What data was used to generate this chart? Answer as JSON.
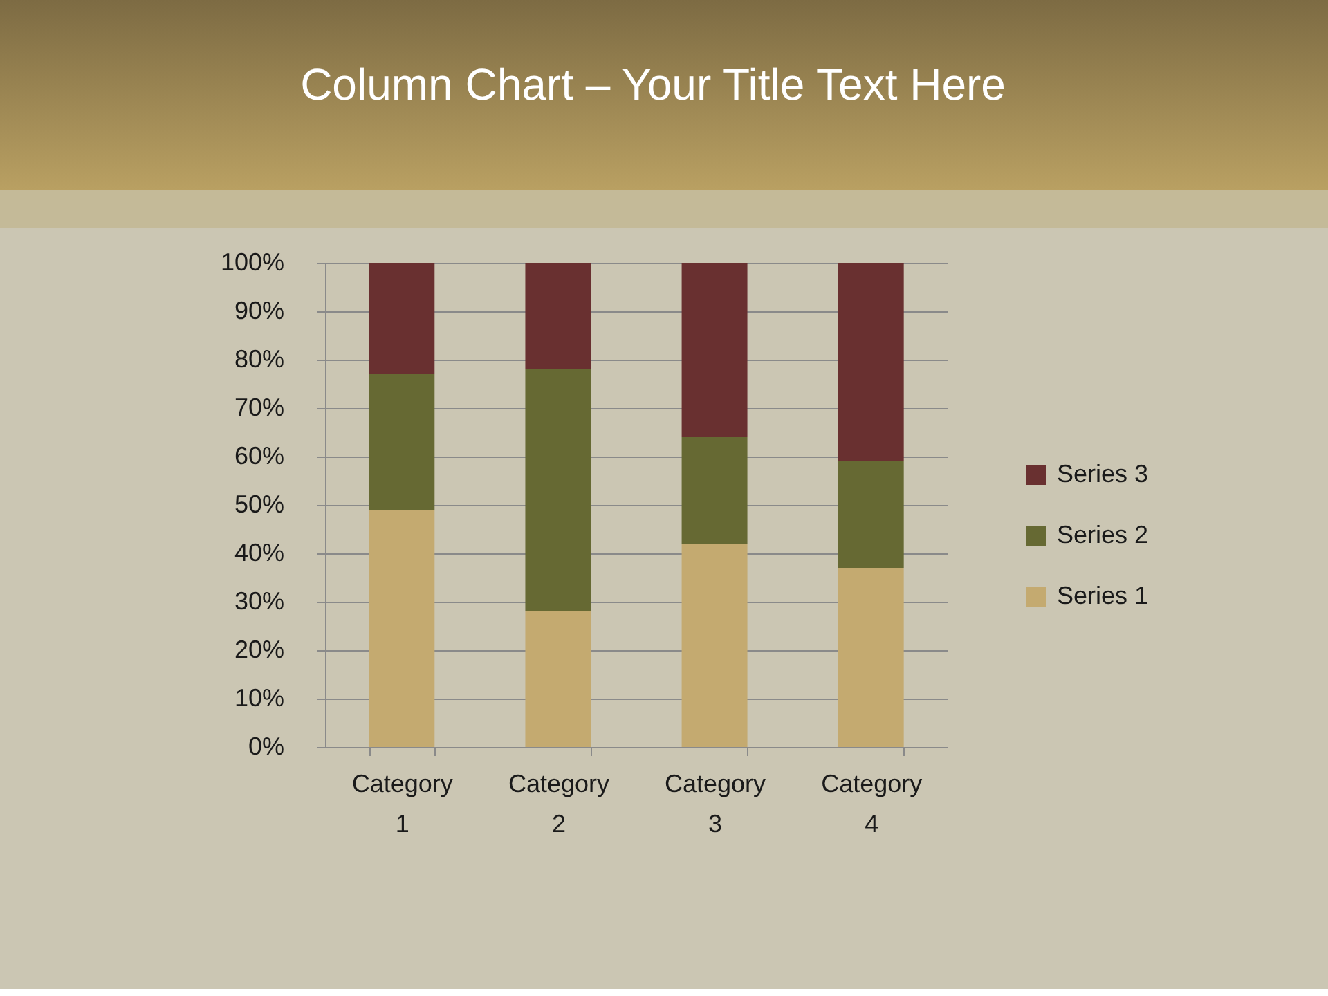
{
  "chart_data": {
    "type": "bar",
    "title": "Column Chart – Your Title Text Here",
    "categories": [
      "Category 1",
      "Category 2",
      "Category 3",
      "Category 4"
    ],
    "stacked": true,
    "series": [
      {
        "name": "Series 1",
        "color": "#c4aa70",
        "values": [
          49,
          28,
          42,
          37
        ]
      },
      {
        "name": "Series 2",
        "color": "#666933",
        "values": [
          28,
          50,
          22,
          22
        ]
      },
      {
        "name": "Series 3",
        "color": "#693030",
        "values": [
          23,
          22,
          36,
          41
        ]
      }
    ],
    "ylim": [
      0,
      100
    ],
    "yticks": [
      {
        "value": 0,
        "label": "0%"
      },
      {
        "value": 10,
        "label": "10%"
      },
      {
        "value": 20,
        "label": "20%"
      },
      {
        "value": 30,
        "label": "30%"
      },
      {
        "value": 40,
        "label": "40%"
      },
      {
        "value": 50,
        "label": "50%"
      },
      {
        "value": 60,
        "label": "60%"
      },
      {
        "value": 70,
        "label": "70%"
      },
      {
        "value": 80,
        "label": "80%"
      },
      {
        "value": 90,
        "label": "90%"
      },
      {
        "value": 100,
        "label": "100%"
      }
    ],
    "grid": "y",
    "legend": "right"
  }
}
